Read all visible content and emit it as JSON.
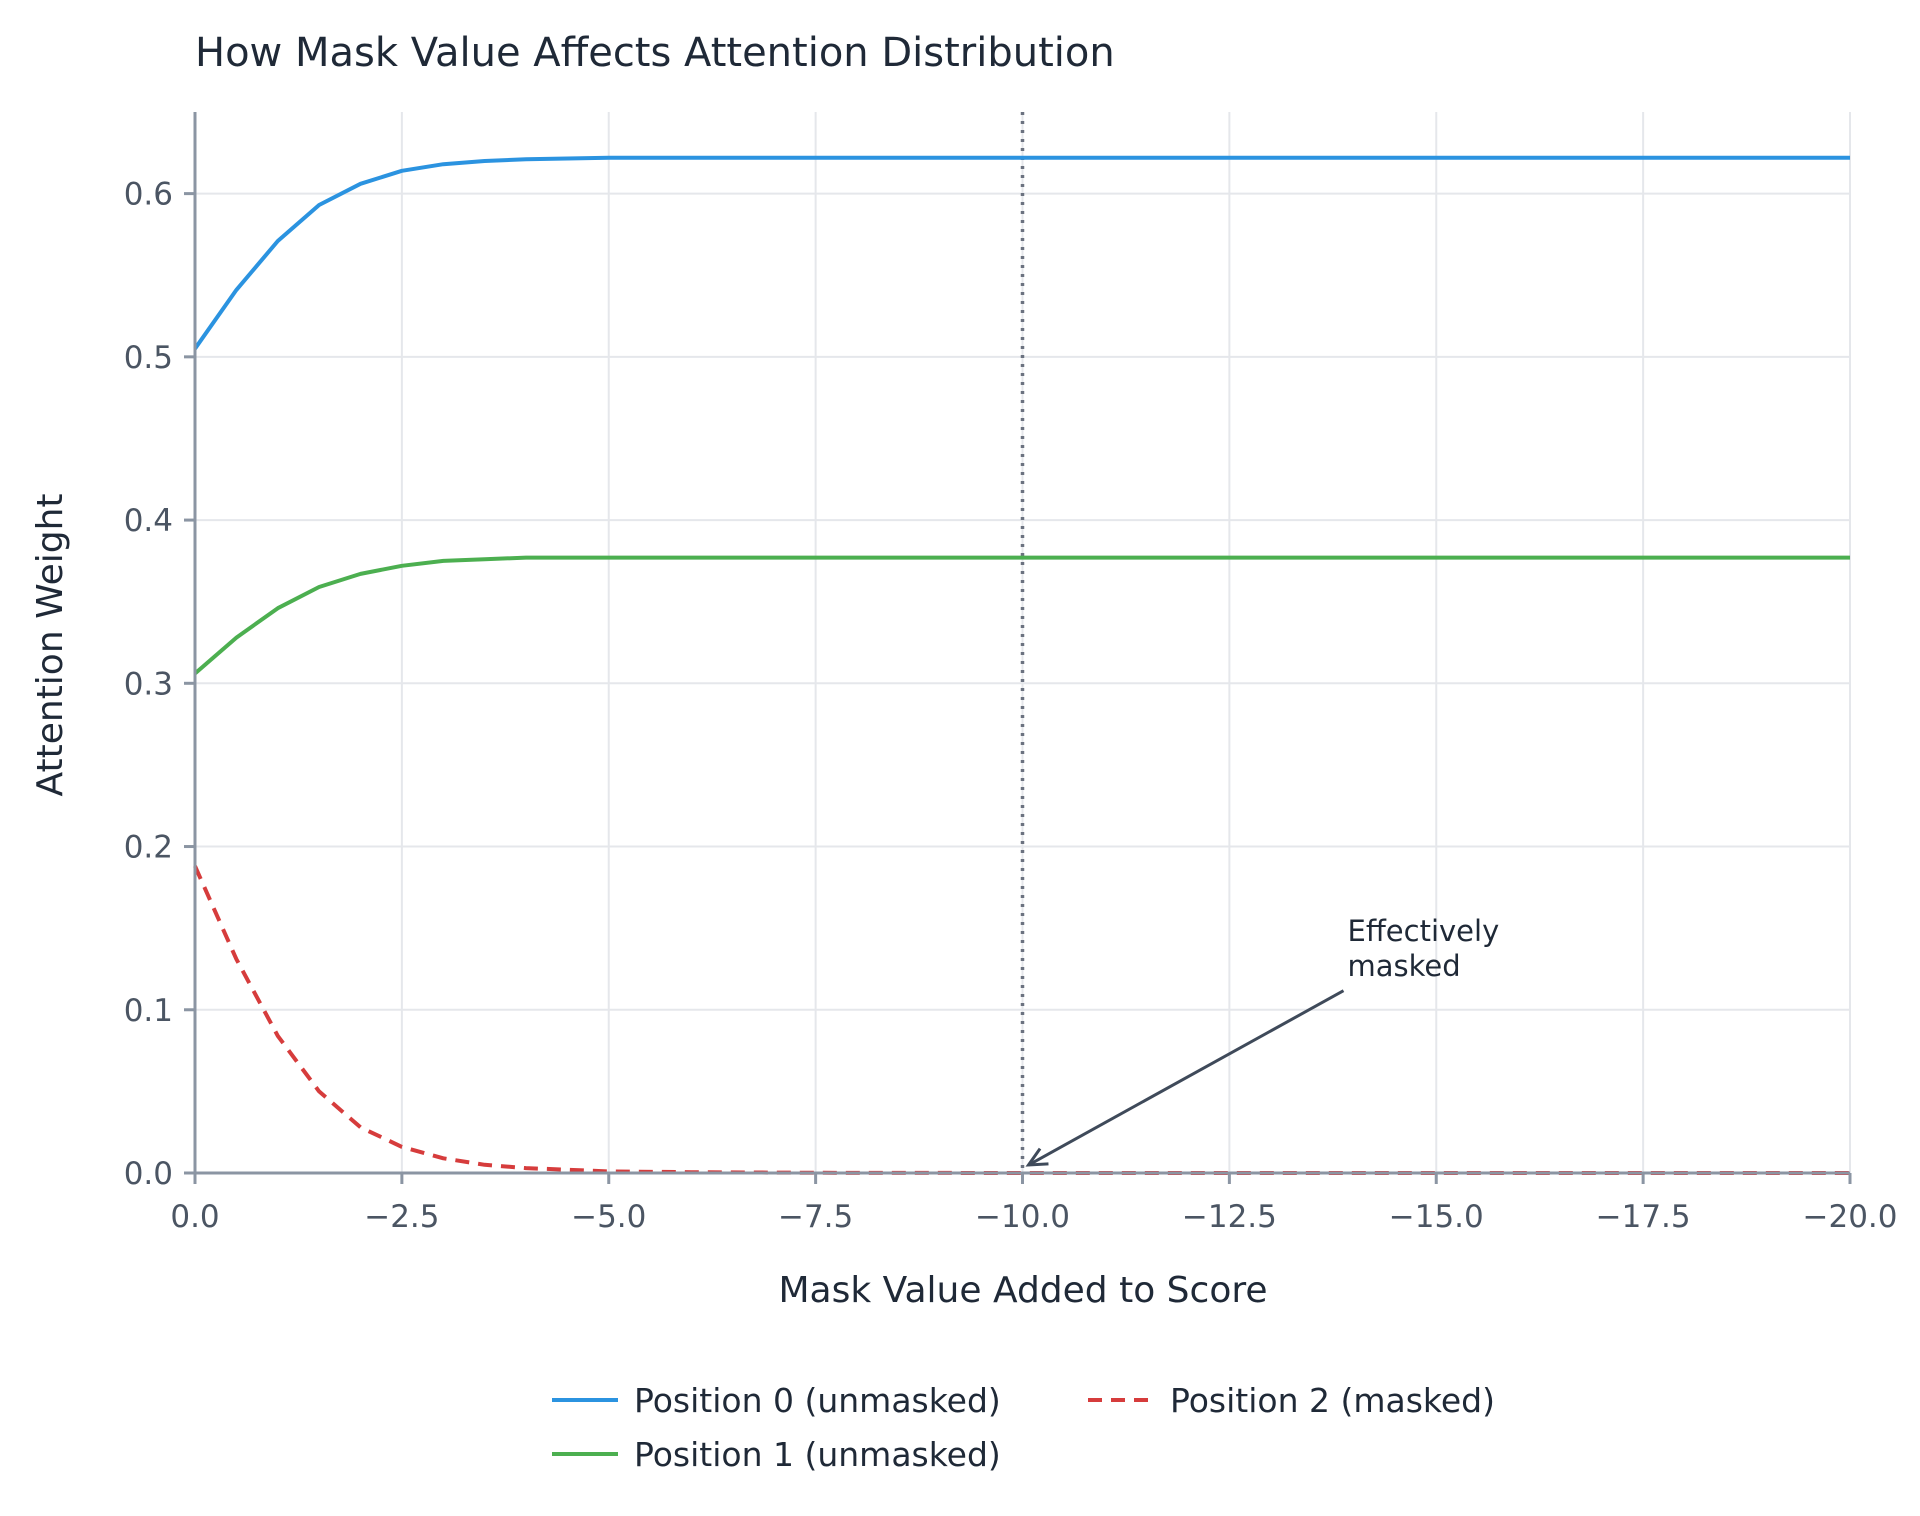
{
  "chart_data": {
    "type": "line",
    "title": "How Mask Value Affects Attention Distribution",
    "xlabel": "Mask Value Added to Score",
    "ylabel": "Attention Weight",
    "xlim": [
      0,
      -20
    ],
    "ylim": [
      0,
      0.65
    ],
    "x_ticks": [
      0,
      -2.5,
      -5,
      -7.5,
      -10,
      -12.5,
      -15,
      -17.5,
      -20
    ],
    "x_tick_labels": [
      "0.0",
      "−2.5",
      "−5.0",
      "−7.5",
      "−10.0",
      "−12.5",
      "−15.0",
      "−17.5",
      "−20.0"
    ],
    "y_ticks": [
      0,
      0.1,
      0.2,
      0.3,
      0.4,
      0.5,
      0.6
    ],
    "y_tick_labels": [
      "0.0",
      "0.1",
      "0.2",
      "0.3",
      "0.4",
      "0.5",
      "0.6"
    ],
    "grid": true,
    "legend_position": "bottom-center",
    "series": [
      {
        "name": "Position 0 (unmasked)",
        "color": "#2b93e0",
        "dash": "solid",
        "x": [
          0,
          -0.5,
          -1,
          -1.5,
          -2,
          -2.5,
          -3,
          -3.5,
          -4,
          -5,
          -6,
          -7.5,
          -10,
          -12.5,
          -15,
          -17.5,
          -20
        ],
        "y": [
          0.505,
          0.541,
          0.571,
          0.593,
          0.606,
          0.614,
          0.618,
          0.62,
          0.621,
          0.622,
          0.622,
          0.622,
          0.622,
          0.622,
          0.622,
          0.622,
          0.622
        ]
      },
      {
        "name": "Position 1 (unmasked)",
        "color": "#4caf50",
        "dash": "solid",
        "x": [
          0,
          -0.5,
          -1,
          -1.5,
          -2,
          -2.5,
          -3,
          -3.5,
          -4,
          -5,
          -6,
          -7.5,
          -10,
          -12.5,
          -15,
          -17.5,
          -20
        ],
        "y": [
          0.306,
          0.328,
          0.346,
          0.359,
          0.367,
          0.372,
          0.375,
          0.376,
          0.377,
          0.377,
          0.377,
          0.377,
          0.377,
          0.377,
          0.377,
          0.377,
          0.377
        ]
      },
      {
        "name": "Position 2 (masked)",
        "color": "#d63c3c",
        "dash": "dashed",
        "x": [
          0,
          -0.5,
          -1,
          -1.5,
          -2,
          -2.5,
          -3,
          -3.5,
          -4,
          -5,
          -6,
          -7.5,
          -10,
          -12.5,
          -15,
          -17.5,
          -20
        ],
        "y": [
          0.188,
          0.131,
          0.084,
          0.05,
          0.028,
          0.016,
          0.009,
          0.005,
          0.003,
          0.001,
          0.0005,
          0.0001,
          0.0,
          0.0,
          0.0,
          0.0,
          0.0
        ]
      }
    ],
    "reference_line": {
      "x": -10,
      "color": "#6b7280",
      "style": "dotted"
    },
    "annotation": {
      "text_line1": "Effectively",
      "text_line2": "masked",
      "target_x": -10,
      "target_y": 0.0,
      "text_x": -14,
      "text_y": 0.108
    }
  }
}
